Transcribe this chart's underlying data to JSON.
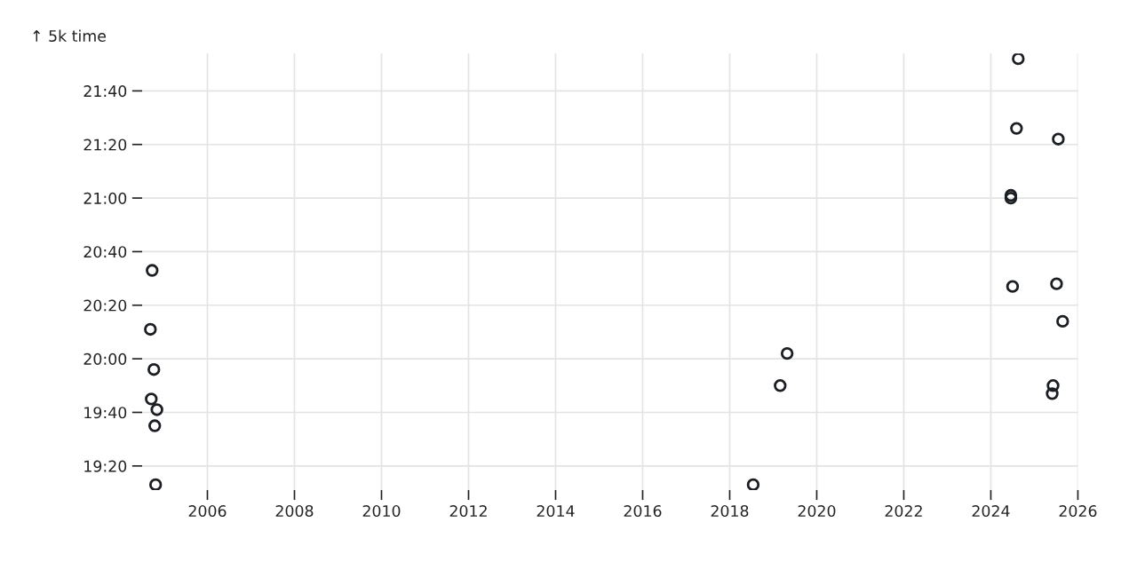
{
  "chart_data": {
    "type": "scatter",
    "ylabel": "↑ 5k time",
    "color": "#1b1e23",
    "marker": "circle",
    "grid": true,
    "x": [
      2004.73,
      2004.69,
      2004.77,
      2004.71,
      2004.84,
      2004.79,
      2004.81,
      2018.54,
      2019.16,
      2019.32,
      2024.63,
      2024.59,
      2025.55,
      2024.46,
      2024.46,
      2024.5,
      2025.51,
      2025.65,
      2025.43,
      2025.41
    ],
    "values": [
      1233,
      1211,
      1196,
      1185,
      1181,
      1175,
      1153,
      1153,
      1190,
      1202,
      1312,
      1286,
      1282,
      1261,
      1260,
      1227,
      1228,
      1214,
      1190,
      1187
    ],
    "xlim": [
      2004.5,
      2026
    ],
    "ylim": [
      1151,
      1314
    ],
    "xticks": [
      2006,
      2008,
      2010,
      2012,
      2014,
      2016,
      2018,
      2020,
      2022,
      2024,
      2026
    ],
    "yticks": [
      {
        "value": 1160,
        "label": "19:20"
      },
      {
        "value": 1180,
        "label": "19:40"
      },
      {
        "value": 1200,
        "label": "20:00"
      },
      {
        "value": 1220,
        "label": "20:20"
      },
      {
        "value": 1240,
        "label": "20:40"
      },
      {
        "value": 1260,
        "label": "21:00"
      },
      {
        "value": 1280,
        "label": "21:20"
      },
      {
        "value": 1300,
        "label": "21:40"
      }
    ]
  }
}
